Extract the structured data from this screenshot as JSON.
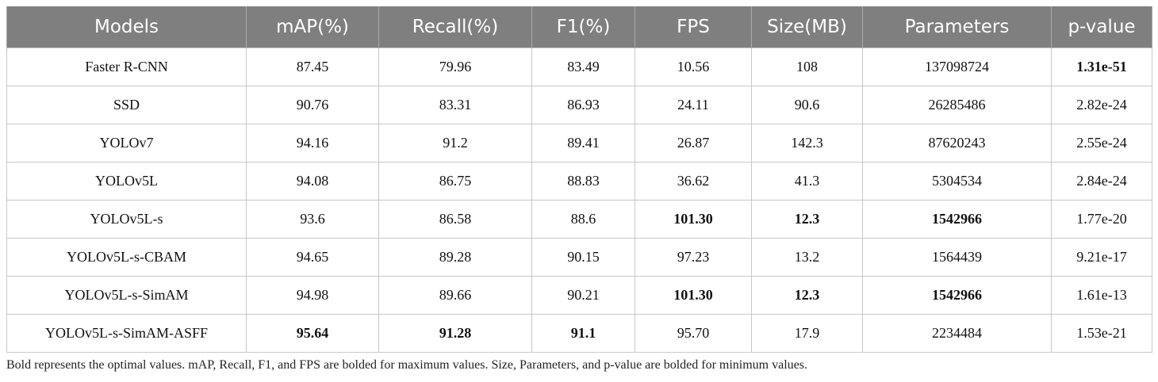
{
  "table": {
    "header": [
      "Models",
      "mAP(%)",
      "Recall(%)",
      "F1(%)",
      "FPS",
      "Size(MB)",
      "Parameters",
      "p-value"
    ],
    "rows": [
      [
        "Faster R-CNN",
        "87.45",
        "79.96",
        "83.49",
        "10.56",
        "108",
        "137098724",
        "1.31e-51"
      ],
      [
        "SSD",
        "90.76",
        "83.31",
        "86.93",
        "24.11",
        "90.6",
        "26285486",
        "2.82e-24"
      ],
      [
        "YOLOv7",
        "94.16",
        "91.2",
        "89.41",
        "26.87",
        "142.3",
        "87620243",
        "2.55e-24"
      ],
      [
        "YOLOv5L",
        "94.08",
        "86.75",
        "88.83",
        "36.62",
        "41.3",
        "5304534",
        "2.84e-24"
      ],
      [
        "YOLOv5L-s",
        "93.6",
        "86.58",
        "88.6",
        "101.30",
        "12.3",
        "1542966",
        "1.77e-20"
      ],
      [
        "YOLOv5L-s-CBAM",
        "94.65",
        "89.28",
        "90.15",
        "97.23",
        "13.2",
        "1564439",
        "9.21e-17"
      ],
      [
        "YOLOv5L-s-SimAM",
        "94.98",
        "89.66",
        "90.21",
        "101.30",
        "12.3",
        "1542966",
        "1.61e-13"
      ],
      [
        "YOLOv5L-s-SimAM-ASFF",
        "95.64",
        "91.28",
        "91.1",
        "95.70",
        "17.9",
        "2234484",
        "1.53e-21"
      ]
    ]
  },
  "footnote": "Bold represents the optimal values. mAP, Recall, F1, and FPS are bolded for maximum values. Size, Parameters, and p-value are bolded for minimum values."
}
